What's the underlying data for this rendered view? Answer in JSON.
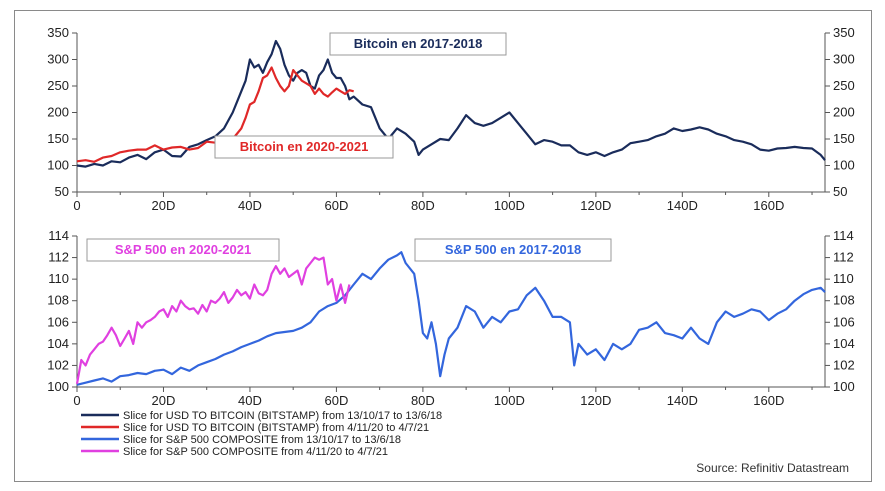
{
  "chart_data": [
    {
      "type": "line",
      "xlim": [
        0,
        173
      ],
      "ylim": [
        50,
        350
      ],
      "x_ticks": [
        "0",
        "20D",
        "40D",
        "60D",
        "80D",
        "100D",
        "120D",
        "140D",
        "160D"
      ],
      "x_tick_values": [
        0,
        20,
        40,
        60,
        80,
        100,
        120,
        140,
        160
      ],
      "y_ticks": [
        50,
        100,
        150,
        200,
        250,
        300,
        350
      ],
      "labels": [
        {
          "text": "Bitcoin en 2017-2018",
          "color": "#1a2c5b"
        },
        {
          "text": "Bitcoin en 2020-2021",
          "color": "#e02828"
        }
      ],
      "series": [
        {
          "color": "#1a2c5b",
          "x": [
            0,
            2,
            4,
            6,
            8,
            10,
            12,
            14,
            16,
            18,
            20,
            22,
            24,
            26,
            28,
            30,
            32,
            34,
            36,
            38,
            39,
            40,
            41,
            42,
            43,
            44,
            45,
            46,
            47,
            48,
            49,
            50,
            51,
            52,
            53,
            54,
            55,
            56,
            57,
            58,
            59,
            60,
            61,
            62,
            63,
            64,
            66,
            68,
            70,
            72,
            74,
            76,
            78,
            79,
            80,
            82,
            84,
            86,
            88,
            90,
            92,
            94,
            96,
            98,
            100,
            102,
            104,
            106,
            108,
            110,
            112,
            114,
            116,
            118,
            120,
            122,
            124,
            126,
            128,
            130,
            132,
            134,
            136,
            138,
            140,
            142,
            144,
            146,
            148,
            150,
            152,
            154,
            156,
            158,
            160,
            162,
            164,
            166,
            168,
            170,
            172,
            173
          ],
          "y": [
            100,
            98,
            103,
            100,
            108,
            106,
            115,
            120,
            112,
            125,
            130,
            118,
            117,
            135,
            140,
            148,
            155,
            170,
            200,
            240,
            260,
            300,
            285,
            290,
            275,
            295,
            310,
            335,
            320,
            290,
            270,
            260,
            275,
            280,
            275,
            250,
            245,
            270,
            280,
            300,
            275,
            265,
            265,
            250,
            225,
            230,
            215,
            210,
            170,
            150,
            170,
            160,
            145,
            120,
            130,
            140,
            150,
            148,
            170,
            195,
            180,
            175,
            180,
            190,
            200,
            180,
            160,
            140,
            148,
            145,
            138,
            138,
            125,
            120,
            125,
            118,
            125,
            130,
            142,
            145,
            148,
            155,
            160,
            170,
            165,
            168,
            172,
            168,
            160,
            155,
            148,
            145,
            140,
            130,
            128,
            132,
            133,
            135,
            133,
            132,
            120,
            110
          ]
        },
        {
          "color": "#e02828",
          "x": [
            0,
            2,
            4,
            6,
            8,
            10,
            12,
            14,
            16,
            18,
            20,
            22,
            24,
            26,
            28,
            30,
            32,
            34,
            36,
            38,
            39,
            40,
            41,
            42,
            43,
            44,
            45,
            46,
            47,
            48,
            49,
            50,
            51,
            52,
            53,
            54,
            55,
            56,
            57,
            58,
            59,
            60,
            61,
            62,
            63,
            64
          ],
          "y": [
            108,
            110,
            107,
            115,
            118,
            125,
            128,
            130,
            130,
            138,
            130,
            134,
            135,
            130,
            133,
            145,
            143,
            145,
            150,
            170,
            190,
            215,
            220,
            240,
            265,
            270,
            285,
            265,
            250,
            240,
            250,
            280,
            270,
            260,
            255,
            250,
            235,
            245,
            235,
            230,
            238,
            245,
            240,
            235,
            242,
            240
          ]
        }
      ]
    },
    {
      "type": "line",
      "xlim": [
        0,
        173
      ],
      "ylim": [
        100,
        114
      ],
      "x_ticks": [
        "0",
        "20D",
        "40D",
        "60D",
        "80D",
        "100D",
        "120D",
        "140D",
        "160D"
      ],
      "x_tick_values": [
        0,
        20,
        40,
        60,
        80,
        100,
        120,
        140,
        160
      ],
      "y_ticks": [
        100,
        102,
        104,
        106,
        108,
        110,
        112,
        114
      ],
      "labels": [
        {
          "text": "S&P 500 en 2020-2021",
          "color": "#e040e0"
        },
        {
          "text": "S&P 500 en 2017-2018",
          "color": "#3366dd"
        }
      ],
      "series": [
        {
          "color": "#3366dd",
          "x": [
            0,
            2,
            4,
            6,
            8,
            10,
            12,
            14,
            16,
            18,
            20,
            22,
            24,
            26,
            28,
            30,
            32,
            34,
            36,
            38,
            40,
            42,
            44,
            46,
            48,
            50,
            52,
            54,
            56,
            58,
            60,
            62,
            64,
            66,
            68,
            70,
            72,
            74,
            75,
            76,
            78,
            79,
            80,
            81,
            82,
            83,
            84,
            85,
            86,
            88,
            90,
            92,
            94,
            96,
            98,
            100,
            102,
            104,
            106,
            108,
            110,
            112,
            114,
            115,
            116,
            118,
            120,
            122,
            124,
            126,
            128,
            130,
            132,
            134,
            136,
            138,
            140,
            142,
            144,
            146,
            148,
            150,
            152,
            154,
            156,
            158,
            160,
            162,
            164,
            166,
            168,
            170,
            172,
            173
          ],
          "y": [
            100.2,
            100.4,
            100.6,
            100.8,
            100.5,
            101,
            101.1,
            101.3,
            101.2,
            101.5,
            101.6,
            101.2,
            101.8,
            101.5,
            102,
            102.3,
            102.6,
            103,
            103.3,
            103.7,
            104,
            104.3,
            104.7,
            105,
            105.1,
            105.2,
            105.5,
            106,
            107,
            107.5,
            107.8,
            108.5,
            109.5,
            110.5,
            110,
            111,
            111.8,
            112.2,
            112.5,
            111.5,
            110.5,
            108,
            105,
            104.5,
            106,
            104,
            101,
            103,
            104.5,
            105.5,
            107.5,
            107,
            105.5,
            106.5,
            106,
            107,
            107.2,
            108.5,
            109.2,
            108,
            106.5,
            106.5,
            106,
            102,
            104,
            103,
            103.5,
            102.5,
            104,
            103.5,
            104,
            105.3,
            105.5,
            106,
            105,
            104.8,
            104.5,
            105.5,
            104.5,
            104,
            106,
            107,
            106.5,
            106.8,
            107.2,
            107,
            106.2,
            106.8,
            107.2,
            108,
            108.6,
            109,
            109.2,
            108.8
          ]
        },
        {
          "color": "#e040e0",
          "x": [
            0,
            1,
            2,
            3,
            4,
            5,
            6,
            7,
            8,
            9,
            10,
            11,
            12,
            13,
            14,
            15,
            16,
            17,
            18,
            19,
            20,
            21,
            22,
            23,
            24,
            25,
            26,
            27,
            28,
            29,
            30,
            31,
            32,
            33,
            34,
            35,
            36,
            37,
            38,
            39,
            40,
            41,
            42,
            43,
            44,
            45,
            46,
            47,
            48,
            49,
            50,
            51,
            52,
            53,
            54,
            55,
            56,
            57,
            58,
            59,
            60,
            61,
            62,
            63
          ],
          "y": [
            100.3,
            102.5,
            102,
            103,
            103.5,
            104,
            104.2,
            104.8,
            105.5,
            104.8,
            103.8,
            104.5,
            105.2,
            104,
            106,
            105.5,
            106,
            106.2,
            106.5,
            107,
            107.2,
            106.5,
            107.5,
            107,
            108,
            107.5,
            107.2,
            107.3,
            106.8,
            107.6,
            107,
            108,
            107.8,
            108.2,
            108.8,
            107.8,
            108.3,
            109,
            108.5,
            108.8,
            108.2,
            109.5,
            108.7,
            108.5,
            109,
            110.5,
            111.2,
            110.5,
            111,
            110.2,
            110.5,
            110.8,
            109.5,
            111,
            111.5,
            112,
            111.8,
            112,
            109.5,
            110,
            108,
            109.5,
            107.8,
            109.5
          ]
        }
      ]
    }
  ],
  "legend": [
    {
      "label": "Slice for USD TO BITCOIN (BITSTAMP) from 13/10/17 to 13/6/18",
      "color": "#1a2c5b"
    },
    {
      "label": "Slice for USD TO BITCOIN (BITSTAMP) from 4/11/20 to 4/7/21",
      "color": "#e02828"
    },
    {
      "label": "Slice for S&P 500 COMPOSITE from 13/10/17 to 13/6/18",
      "color": "#3366dd"
    },
    {
      "label": "Slice for S&P 500 COMPOSITE from 4/11/20 to 4/7/21",
      "color": "#e040e0"
    }
  ],
  "source": "Source: Refinitiv Datastream"
}
